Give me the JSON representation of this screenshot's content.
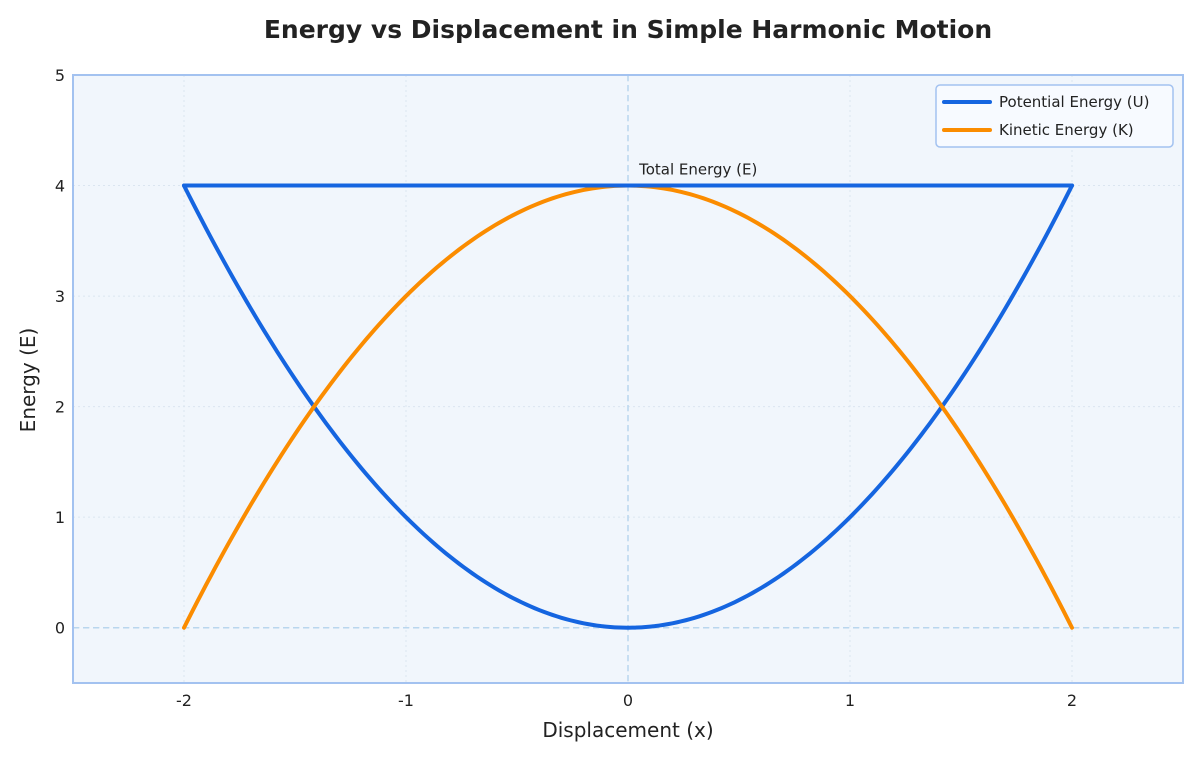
{
  "chart_data": {
    "type": "line",
    "title": "Energy vs Displacement in Simple Harmonic Motion",
    "xlabel": "Displacement (x)",
    "ylabel": "Energy (E)",
    "xlim": [
      -2.5,
      2.5
    ],
    "ylim": [
      -0.5,
      5
    ],
    "xticks": [
      -2,
      -1,
      0,
      1,
      2
    ],
    "yticks": [
      0,
      1,
      2,
      3,
      4,
      5
    ],
    "grid": true,
    "legend_position": "top-right",
    "amplitude": 2,
    "total_energy": 4,
    "series": [
      {
        "name": "Potential Energy (U)",
        "color": "#1565e0",
        "x": [
          -2.0,
          -1.5,
          -1.0,
          -0.5,
          0.0,
          0.5,
          1.0,
          1.5,
          2.0
        ],
        "y": [
          4.0,
          2.25,
          1.0,
          0.25,
          0.0,
          0.25,
          1.0,
          2.25,
          4.0
        ]
      },
      {
        "name": "Kinetic Energy (K)",
        "color": "#fb8c00",
        "x": [
          -2.0,
          -1.5,
          -1.0,
          -0.5,
          0.0,
          0.5,
          1.0,
          1.5,
          2.0
        ],
        "y": [
          0.0,
          1.75,
          3.0,
          3.75,
          4.0,
          3.75,
          3.0,
          1.75,
          0.0
        ]
      }
    ],
    "total_energy_line": {
      "color": "#1565e0",
      "x": [
        -2,
        2
      ],
      "y": [
        4,
        4
      ]
    },
    "annotations": [
      {
        "text": "Total Energy (E)",
        "x": 0.05,
        "y": 4.1
      }
    ],
    "reference_lines": {
      "color": "#b9d6ee",
      "vertical_x": 0,
      "horizontal_y": 0
    },
    "colors": {
      "plot_background": "#f1f6fc",
      "plot_border": "#a3c2f0",
      "grid": "#dbe5f0"
    }
  }
}
